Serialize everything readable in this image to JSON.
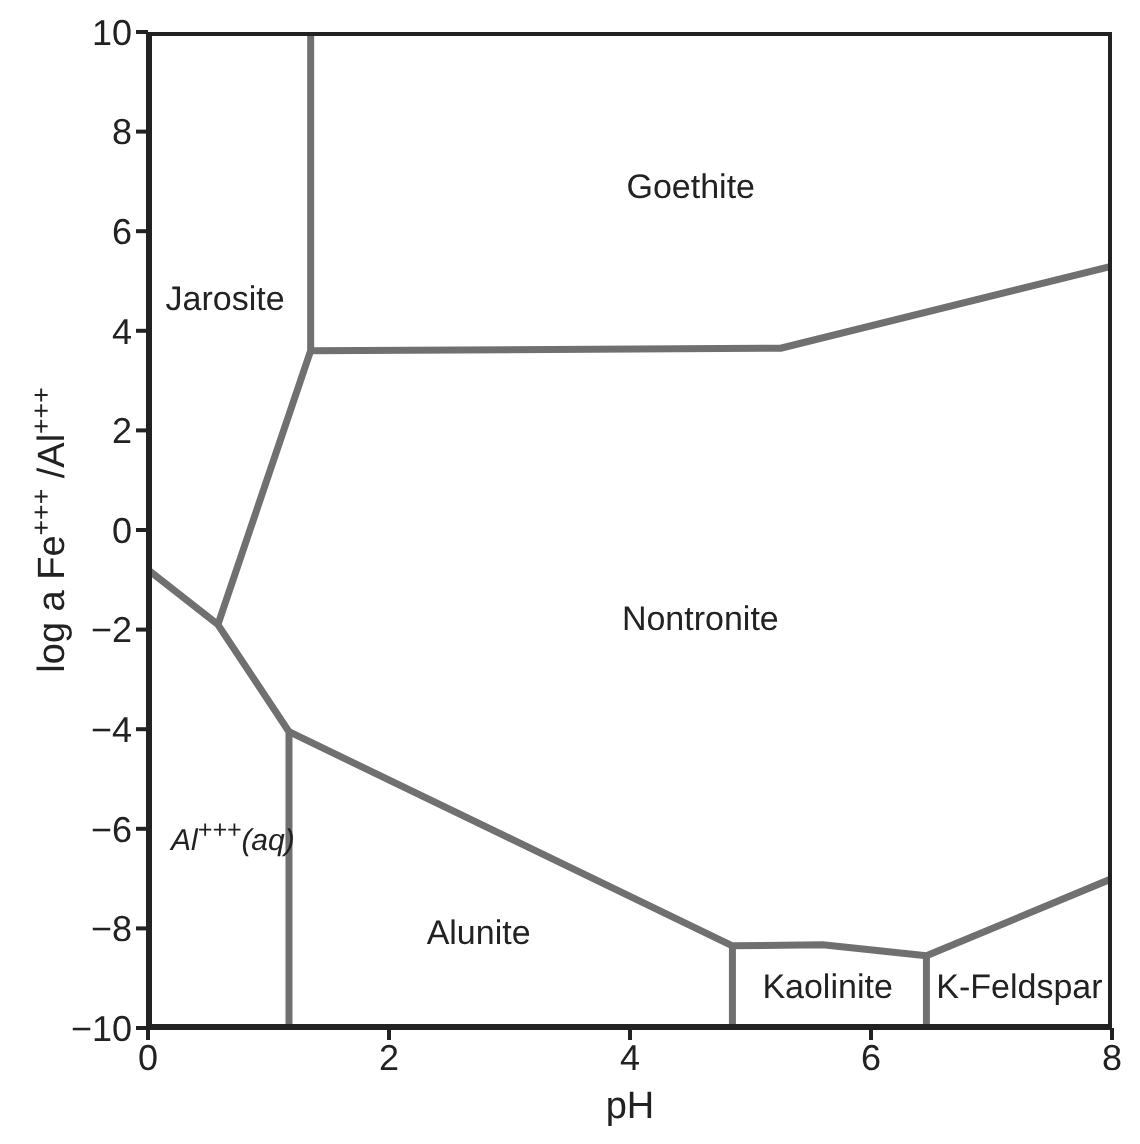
{
  "chart_data": {
    "type": "line",
    "xlabel": "pH",
    "ylabel": "log a Fe$^{+++}$ /Al$^{+++}$",
    "xlim": [
      0,
      8
    ],
    "ylim": [
      -10,
      10
    ],
    "xticks": [
      0,
      2,
      4,
      6,
      8
    ],
    "yticks": [
      -10,
      -8,
      -6,
      -4,
      -2,
      0,
      2,
      4,
      6,
      8,
      10
    ],
    "grid": false,
    "marker": "none",
    "line_style": "solid",
    "series": [
      {
        "color": "#707070",
        "x": [
          1.35,
          1.35,
          0.58
        ],
        "values": [
          10,
          3.6,
          -1.9
        ]
      },
      {
        "color": "#707070",
        "x": [
          1.35,
          5.25,
          8
        ],
        "values": [
          3.6,
          3.65,
          5.3
        ]
      },
      {
        "color": "#707070",
        "x": [
          0,
          0.58,
          1.17,
          1.17
        ],
        "values": [
          -0.8,
          -1.9,
          -4.05,
          -10
        ]
      },
      {
        "color": "#707070",
        "x": [
          1.17,
          4.85,
          5.6,
          6.46,
          8
        ],
        "values": [
          -4.05,
          -8.35,
          -8.33,
          -8.55,
          -7
        ]
      },
      {
        "color": "#707070",
        "x": [
          4.85,
          4.85
        ],
        "values": [
          -8.35,
          -10
        ]
      },
      {
        "color": "#707070",
        "x": [
          6.46,
          6.46
        ],
        "values": [
          -8.55,
          -10
        ]
      }
    ],
    "annotations": [
      "Goethite",
      "Jarosite",
      "Nontronite",
      "Al$^{+++}$(aq)",
      "Alunite",
      "Kaolinite",
      "K-Feldspar"
    ]
  }
}
